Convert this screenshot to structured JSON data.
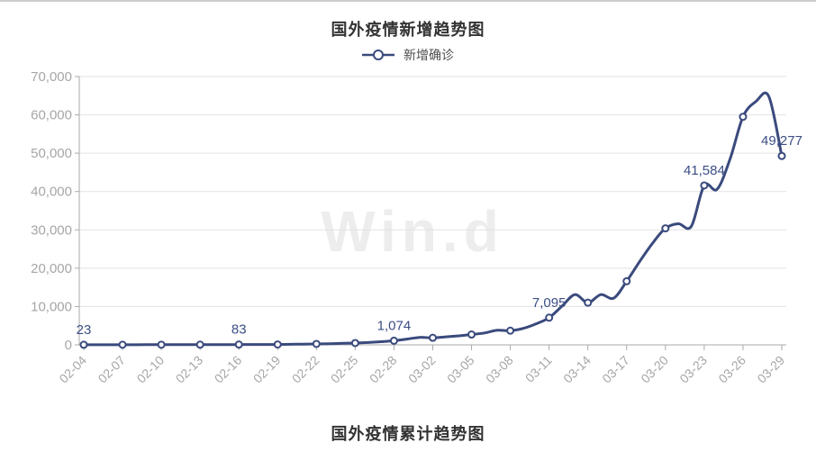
{
  "page": {
    "top_title": "国外疫情新增趋势图",
    "bottom_title": "国外疫情累计趋势图"
  },
  "legend": {
    "label": "新增确诊"
  },
  "watermark": {
    "text": "Win.d"
  },
  "colors": {
    "line": "#3a4a7d",
    "marker_fill": "#ffffff",
    "data_label": "#3c4e86",
    "axis": "#aaaaaa",
    "grid": "#e2e2e2",
    "axis_text": "#a6a6a6",
    "title_text": "#333333",
    "legend_text": "#4d4d4d",
    "watermark_color": "#ededed",
    "top_border": "#cccccc"
  },
  "chart_data": {
    "type": "line",
    "smooth": true,
    "title": "国外疫情新增趋势图",
    "series_name": "新增确诊",
    "legend_position": "top",
    "grid": true,
    "ylim": [
      0,
      70000
    ],
    "ytick_step": 10000,
    "ytick_labels": [
      "0",
      "10,000",
      "20,000",
      "30,000",
      "40,000",
      "50,000",
      "60,000",
      "70,000"
    ],
    "tick_every": 3,
    "marker_every": 3,
    "x_tick_labels": [
      "02-04",
      "02-07",
      "02-10",
      "02-13",
      "02-16",
      "02-19",
      "02-22",
      "02-25",
      "02-28",
      "03-02",
      "03-05",
      "03-08",
      "03-11",
      "03-14",
      "03-17",
      "03-20",
      "03-23",
      "03-26",
      "03-29"
    ],
    "x": [
      "02-04",
      "02-05",
      "02-06",
      "02-07",
      "02-08",
      "02-09",
      "02-10",
      "02-11",
      "02-12",
      "02-13",
      "02-14",
      "02-15",
      "02-16",
      "02-17",
      "02-18",
      "02-19",
      "02-20",
      "02-21",
      "02-22",
      "02-23",
      "02-24",
      "02-25",
      "02-26",
      "02-27",
      "02-28",
      "02-29",
      "03-01",
      "03-02",
      "03-03",
      "03-04",
      "03-05",
      "03-06",
      "03-07",
      "03-08",
      "03-09",
      "03-10",
      "03-11",
      "03-12",
      "03-13",
      "03-14",
      "03-15",
      "03-16",
      "03-17",
      "03-18",
      "03-19",
      "03-20",
      "03-21",
      "03-22",
      "03-23",
      "03-24",
      "03-25",
      "03-26",
      "03-27",
      "03-28",
      "03-29"
    ],
    "values": [
      23,
      26,
      28,
      30,
      34,
      38,
      42,
      46,
      50,
      55,
      64,
      73,
      83,
      90,
      96,
      102,
      140,
      185,
      240,
      310,
      390,
      480,
      620,
      830,
      1074,
      1500,
      1950,
      1840,
      2100,
      2350,
      2700,
      3100,
      3800,
      3700,
      4300,
      5500,
      7095,
      10100,
      13100,
      11000,
      13100,
      12200,
      16600,
      21700,
      26500,
      30400,
      31600,
      30900,
      41584,
      40600,
      48500,
      59500,
      63500,
      64800,
      49277
    ],
    "point_labels": [
      {
        "index": 0,
        "label": "23"
      },
      {
        "index": 12,
        "label": "83"
      },
      {
        "index": 24,
        "label": "1,074"
      },
      {
        "index": 36,
        "label": "7,095"
      },
      {
        "index": 48,
        "label": "41,584"
      },
      {
        "index": 54,
        "label": "49,277"
      }
    ]
  }
}
